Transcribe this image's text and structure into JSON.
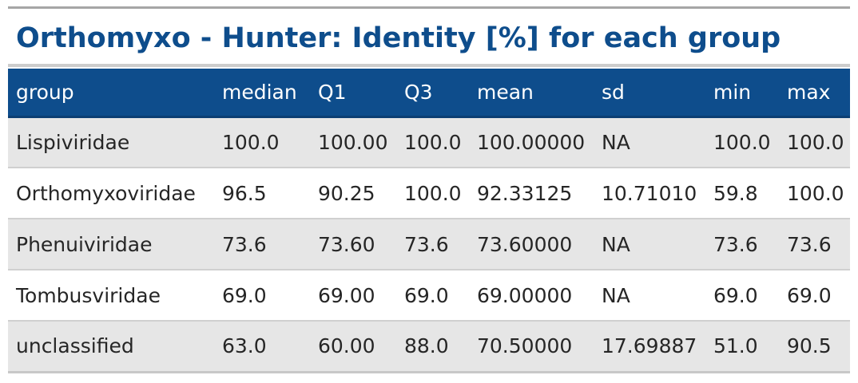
{
  "title": "Orthomyxo - Hunter: Identity [%] for each group",
  "table": {
    "columns": [
      "group",
      "median",
      "Q1",
      "Q3",
      "mean",
      "sd",
      "min",
      "max"
    ],
    "rows": [
      [
        "Lispiviridae",
        "100.0",
        "100.00",
        "100.0",
        "100.00000",
        "NA",
        "100.0",
        "100.0"
      ],
      [
        "Orthomyxoviridae",
        "96.5",
        "90.25",
        "100.0",
        "92.33125",
        "10.71010",
        "59.8",
        "100.0"
      ],
      [
        "Phenuiviridae",
        "73.6",
        "73.60",
        "73.6",
        "73.60000",
        "NA",
        "73.6",
        "73.6"
      ],
      [
        "Tombusviridae",
        "69.0",
        "69.00",
        "69.0",
        "69.00000",
        "NA",
        "69.0",
        "69.0"
      ],
      [
        "unclassified",
        "63.0",
        "60.00",
        "88.0",
        "70.50000",
        "17.69887",
        "51.0",
        "90.5"
      ]
    ]
  },
  "colors": {
    "title": "#0e4d8c",
    "header_background": "#0e4d8c",
    "header_text": "#ffffff",
    "row_stripe": "#e6e6e6"
  }
}
